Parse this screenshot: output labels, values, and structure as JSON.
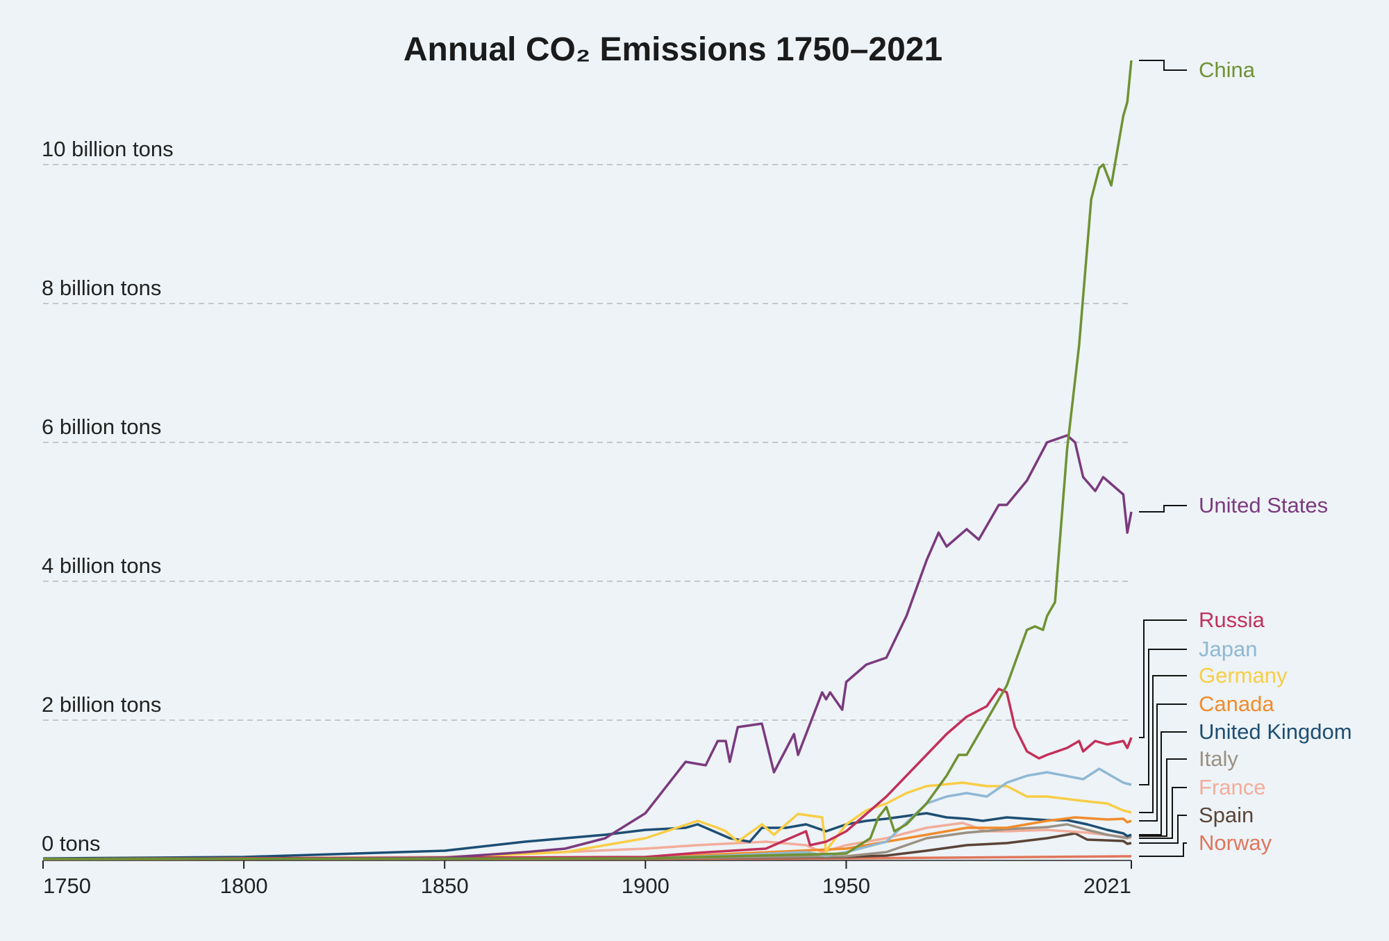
{
  "chart_data": {
    "type": "line",
    "title": "Annual CO₂ Emissions 1750–2021",
    "xlim": [
      1750,
      2021
    ],
    "ylim": [
      0,
      11.5
    ],
    "x_ticks": [
      {
        "value": 1750,
        "label": "1750"
      },
      {
        "value": 1800,
        "label": "1800"
      },
      {
        "value": 1850,
        "label": "1850"
      },
      {
        "value": 1900,
        "label": "1900"
      },
      {
        "value": 1950,
        "label": "1950"
      },
      {
        "value": 2021,
        "label": "2021"
      }
    ],
    "y_ticks": [
      {
        "value": 0,
        "label": "0 tons"
      },
      {
        "value": 2,
        "label": "2 billion tons"
      },
      {
        "value": 4,
        "label": "4 billion tons"
      },
      {
        "value": 6,
        "label": "6 billion tons"
      },
      {
        "value": 8,
        "label": "8 billion tons"
      },
      {
        "value": 10,
        "label": "10 billion tons"
      }
    ],
    "y_unit": "billion tons",
    "grid": "horizontal dashed",
    "legend": "right, direct labels",
    "series": [
      {
        "name": "China",
        "color": "#6f9232",
        "x": [
          1750,
          1900,
          1950,
          1956,
          1958,
          1960,
          1962,
          1965,
          1970,
          1975,
          1978,
          1980,
          1985,
          1990,
          1995,
          1997,
          1999,
          2000,
          2002,
          2005,
          2008,
          2011,
          2013,
          2014,
          2016,
          2019,
          2020,
          2021
        ],
        "y": [
          0,
          0.01,
          0.08,
          0.3,
          0.6,
          0.75,
          0.4,
          0.5,
          0.8,
          1.2,
          1.5,
          1.5,
          2.0,
          2.5,
          3.3,
          3.35,
          3.3,
          3.5,
          3.7,
          5.9,
          7.4,
          9.5,
          9.95,
          10.0,
          9.7,
          10.7,
          10.9,
          11.5
        ]
      },
      {
        "name": "United States",
        "color": "#7b3a7e",
        "x": [
          1750,
          1800,
          1850,
          1870,
          1880,
          1890,
          1900,
          1910,
          1915,
          1918,
          1920,
          1921,
          1923,
          1929,
          1932,
          1937,
          1938,
          1944,
          1945,
          1946,
          1949,
          1950,
          1955,
          1960,
          1965,
          1970,
          1973,
          1975,
          1980,
          1983,
          1988,
          1990,
          1995,
          2000,
          2005,
          2007,
          2009,
          2012,
          2014,
          2019,
          2020,
          2021
        ],
        "y": [
          0,
          0.001,
          0.02,
          0.1,
          0.15,
          0.3,
          0.66,
          1.4,
          1.35,
          1.7,
          1.7,
          1.4,
          1.9,
          1.95,
          1.25,
          1.8,
          1.5,
          2.4,
          2.3,
          2.4,
          2.15,
          2.55,
          2.8,
          2.9,
          3.5,
          4.3,
          4.7,
          4.5,
          4.75,
          4.6,
          5.1,
          5.1,
          5.45,
          6.0,
          6.1,
          6.0,
          5.5,
          5.3,
          5.5,
          5.25,
          4.7,
          5.0
        ]
      },
      {
        "name": "Russia",
        "color": "#c2305a",
        "x": [
          1750,
          1900,
          1913,
          1930,
          1940,
          1941,
          1945,
          1950,
          1955,
          1960,
          1970,
          1975,
          1980,
          1985,
          1988,
          1990,
          1992,
          1995,
          1998,
          2000,
          2005,
          2008,
          2009,
          2012,
          2015,
          2019,
          2020,
          2021
        ],
        "y": [
          0,
          0.03,
          0.09,
          0.15,
          0.4,
          0.2,
          0.25,
          0.4,
          0.65,
          0.9,
          1.5,
          1.8,
          2.05,
          2.2,
          2.45,
          2.4,
          1.9,
          1.55,
          1.45,
          1.5,
          1.6,
          1.7,
          1.55,
          1.7,
          1.65,
          1.7,
          1.6,
          1.75
        ]
      },
      {
        "name": "Japan",
        "color": "#8fb8d4",
        "x": [
          1750,
          1900,
          1920,
          1940,
          1945,
          1950,
          1960,
          1970,
          1975,
          1980,
          1985,
          1990,
          1995,
          2000,
          2009,
          2013,
          2019,
          2021
        ],
        "y": [
          0,
          0.01,
          0.05,
          0.1,
          0.05,
          0.1,
          0.25,
          0.8,
          0.9,
          0.95,
          0.9,
          1.1,
          1.2,
          1.25,
          1.15,
          1.3,
          1.1,
          1.07
        ]
      },
      {
        "name": "Germany",
        "color": "#f9cd45",
        "x": [
          1750,
          1850,
          1880,
          1900,
          1913,
          1918,
          1920,
          1923,
          1929,
          1932,
          1938,
          1944,
          1945,
          1946,
          1950,
          1955,
          1960,
          1965,
          1970,
          1979,
          1985,
          1990,
          1995,
          2000,
          2010,
          2015,
          2019,
          2021
        ],
        "y": [
          0,
          0.02,
          0.1,
          0.3,
          0.55,
          0.45,
          0.4,
          0.25,
          0.5,
          0.35,
          0.65,
          0.6,
          0.1,
          0.2,
          0.5,
          0.7,
          0.8,
          0.95,
          1.05,
          1.1,
          1.05,
          1.05,
          0.9,
          0.9,
          0.83,
          0.8,
          0.7,
          0.67
        ]
      },
      {
        "name": "Canada",
        "color": "#f08c2c",
        "x": [
          1750,
          1900,
          1950,
          1970,
          1980,
          1990,
          2000,
          2007,
          2015,
          2019,
          2020,
          2021
        ],
        "y": [
          0,
          0.02,
          0.15,
          0.35,
          0.45,
          0.45,
          0.55,
          0.6,
          0.57,
          0.58,
          0.53,
          0.55
        ]
      },
      {
        "name": "United Kingdom",
        "color": "#1d4e73",
        "x": [
          1750,
          1800,
          1850,
          1870,
          1880,
          1890,
          1900,
          1910,
          1913,
          1921,
          1926,
          1929,
          1935,
          1940,
          1945,
          1950,
          1955,
          1960,
          1965,
          1970,
          1975,
          1980,
          1984,
          1990,
          2000,
          2005,
          2010,
          2015,
          2019,
          2020,
          2021
        ],
        "y": [
          0.009,
          0.03,
          0.12,
          0.25,
          0.3,
          0.35,
          0.42,
          0.45,
          0.5,
          0.3,
          0.25,
          0.45,
          0.45,
          0.5,
          0.4,
          0.5,
          0.55,
          0.58,
          0.62,
          0.66,
          0.6,
          0.58,
          0.55,
          0.6,
          0.56,
          0.56,
          0.5,
          0.42,
          0.37,
          0.33,
          0.35
        ]
      },
      {
        "name": "Italy",
        "color": "#9a9183",
        "x": [
          1750,
          1900,
          1950,
          1960,
          1970,
          1980,
          1990,
          2000,
          2005,
          2010,
          2015,
          2020,
          2021
        ],
        "y": [
          0,
          0.01,
          0.04,
          0.1,
          0.3,
          0.38,
          0.43,
          0.46,
          0.5,
          0.42,
          0.35,
          0.3,
          0.33
        ]
      },
      {
        "name": "France",
        "color": "#f3ad9b",
        "x": [
          1750,
          1850,
          1900,
          1913,
          1930,
          1940,
          1944,
          1950,
          1960,
          1970,
          1979,
          1985,
          1990,
          2000,
          2010,
          2019,
          2021
        ],
        "y": [
          0,
          0.03,
          0.15,
          0.2,
          0.25,
          0.2,
          0.1,
          0.2,
          0.3,
          0.45,
          0.52,
          0.4,
          0.4,
          0.42,
          0.38,
          0.32,
          0.3
        ]
      },
      {
        "name": "Spain",
        "color": "#5a4438",
        "x": [
          1750,
          1900,
          1950,
          1960,
          1970,
          1980,
          1990,
          2000,
          2007,
          2010,
          2019,
          2020,
          2021
        ],
        "y": [
          0,
          0.01,
          0.03,
          0.05,
          0.12,
          0.2,
          0.23,
          0.3,
          0.37,
          0.28,
          0.26,
          0.22,
          0.23
        ]
      },
      {
        "name": "Norway",
        "color": "#e0765c",
        "x": [
          1750,
          1900,
          1950,
          2021
        ],
        "y": [
          0,
          0.002,
          0.01,
          0.04
        ]
      }
    ]
  }
}
